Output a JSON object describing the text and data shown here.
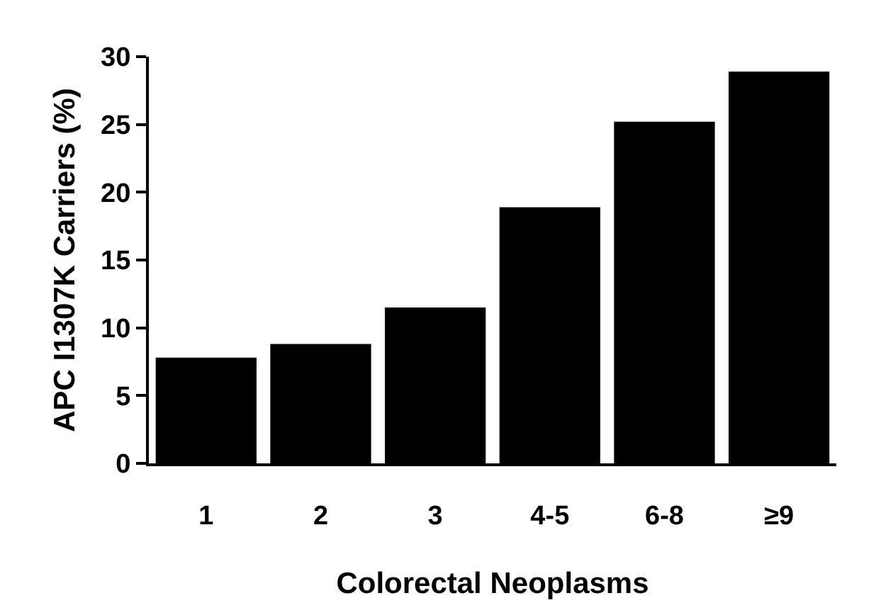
{
  "chart_data": {
    "type": "bar",
    "xlabel": "Colorectal Neoplasms",
    "ylabel": "APC I1307K Carriers (%)",
    "categories": [
      "1",
      "2",
      "3",
      "4-5",
      "6-8",
      "≥9"
    ],
    "values": [
      7.8,
      8.8,
      11.5,
      18.9,
      25.2,
      28.9
    ],
    "color": "#000000",
    "ylim": [
      0,
      30
    ],
    "yticks": [
      0,
      5,
      10,
      15,
      20,
      25,
      30
    ],
    "grid": false
  }
}
